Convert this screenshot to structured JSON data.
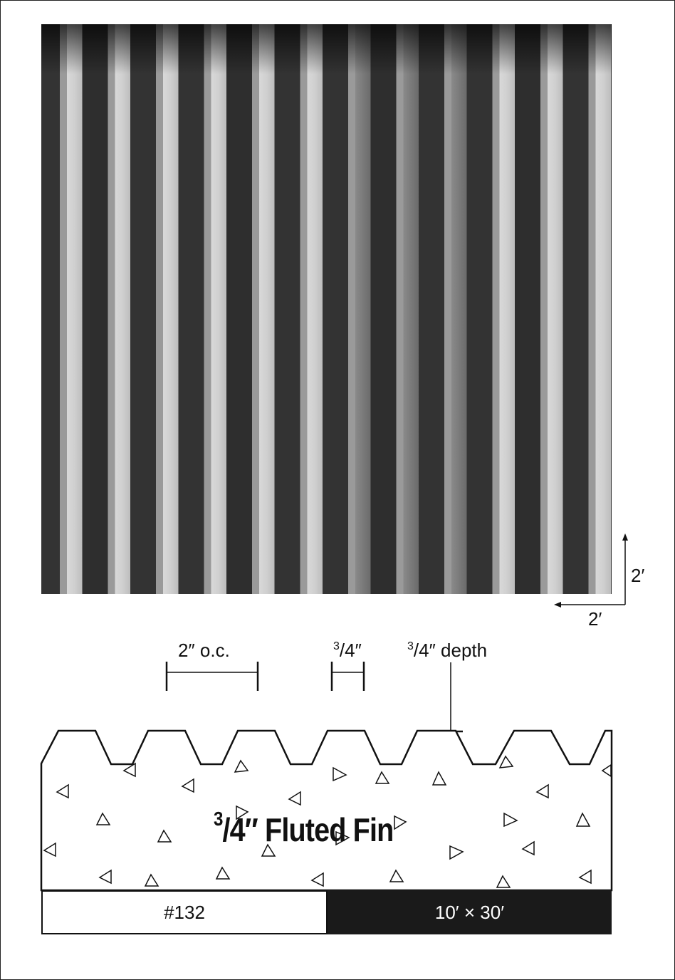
{
  "scale": {
    "vertical": "2′",
    "horizontal": "2′"
  },
  "dimensions": {
    "spacing": "2″ o.c.",
    "width_num": "3",
    "width_den": "/4″",
    "depth_num": "3",
    "depth_rest": "/4″ depth"
  },
  "title": {
    "numerator": "3",
    "rest": "/4″ Fluted Fin"
  },
  "footer": {
    "code": "#132",
    "size": "10′ × 30′"
  },
  "colors": {
    "ink": "#111111",
    "footer_dark": "#1a1a1a"
  }
}
